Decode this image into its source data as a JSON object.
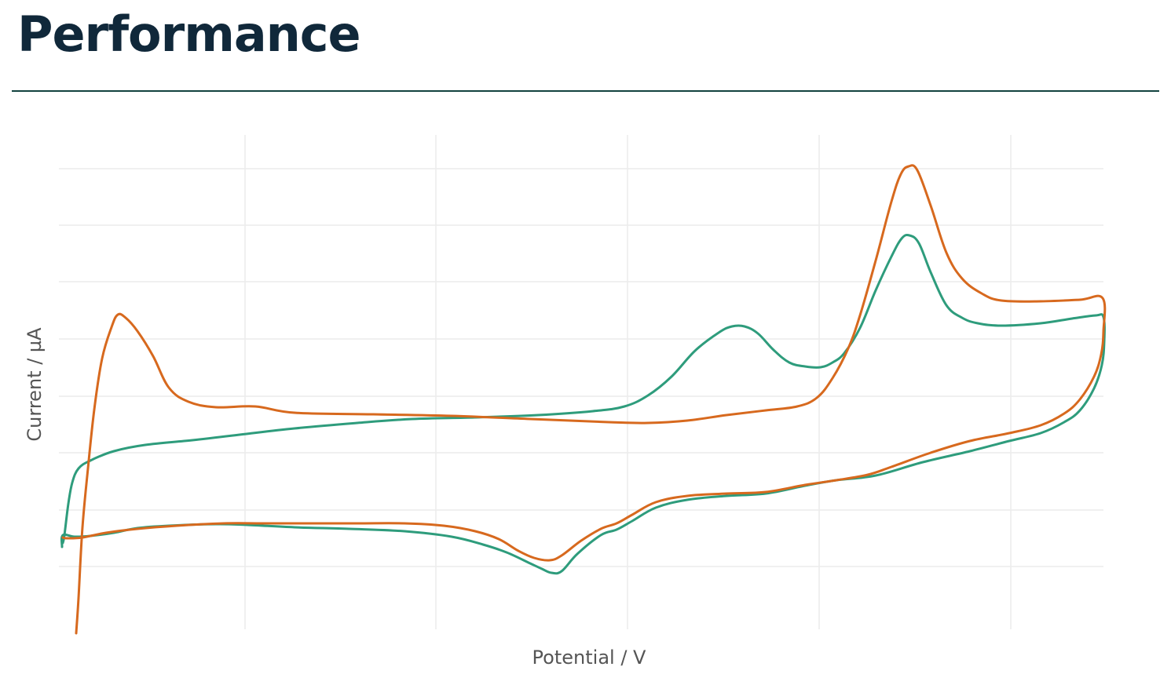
{
  "page": {
    "title": "Performance"
  },
  "colors": {
    "title": "#10283a",
    "rule": "#12433f",
    "grid": "#ececec"
  },
  "chart_data": {
    "type": "line",
    "xlabel": "Potential / V",
    "ylabel": "Current / µA",
    "xlim": [
      0,
      1330
    ],
    "ylim": [
      0,
      630
    ],
    "grid": true,
    "x_gridlines": [
      237,
      480,
      724,
      968,
      1212
    ],
    "y_gridlines": [
      80,
      152,
      225,
      297,
      370,
      443,
      515,
      587
    ],
    "series": [
      {
        "color": "#2e9c7c",
        "values": [
          [
            5,
            110
          ],
          [
            7,
            120
          ],
          [
            12,
            160
          ],
          [
            17,
            187
          ],
          [
            25,
            205
          ],
          [
            40,
            215
          ],
          [
            70,
            227
          ],
          [
            110,
            235
          ],
          [
            170,
            241
          ],
          [
            230,
            248
          ],
          [
            300,
            256
          ],
          [
            380,
            263
          ],
          [
            450,
            268
          ],
          [
            530,
            270
          ],
          [
            610,
            273
          ],
          [
            680,
            278
          ],
          [
            720,
            284
          ],
          [
            750,
            298
          ],
          [
            780,
            322
          ],
          [
            810,
            355
          ],
          [
            840,
            378
          ],
          [
            857,
            386
          ],
          [
            873,
            386
          ],
          [
            890,
            377
          ],
          [
            910,
            356
          ],
          [
            930,
            340
          ],
          [
            950,
            335
          ],
          [
            970,
            334
          ],
          [
            985,
            340
          ],
          [
            1000,
            352
          ],
          [
            1020,
            384
          ],
          [
            1040,
            432
          ],
          [
            1060,
            475
          ],
          [
            1073,
            498
          ],
          [
            1083,
            502
          ],
          [
            1095,
            492
          ],
          [
            1110,
            455
          ],
          [
            1130,
            413
          ],
          [
            1150,
            397
          ],
          [
            1170,
            390
          ],
          [
            1200,
            387
          ],
          [
            1250,
            390
          ],
          [
            1290,
            396
          ],
          [
            1320,
            400
          ],
          [
            1330,
            398
          ],
          [
            1331,
            367
          ],
          [
            1328,
            337
          ],
          [
            1318,
            307
          ],
          [
            1300,
            279
          ],
          [
            1280,
            264
          ],
          [
            1250,
            250
          ],
          [
            1210,
            240
          ],
          [
            1160,
            227
          ],
          [
            1100,
            213
          ],
          [
            1040,
            196
          ],
          [
            990,
            190
          ],
          [
            950,
            183
          ],
          [
            900,
            173
          ],
          [
            850,
            170
          ],
          [
            800,
            165
          ],
          [
            760,
            155
          ],
          [
            730,
            138
          ],
          [
            710,
            127
          ],
          [
            690,
            120
          ],
          [
            660,
            96
          ],
          [
            640,
            74
          ],
          [
            627,
            72
          ],
          [
            615,
            77
          ],
          [
            600,
            84
          ],
          [
            570,
            98
          ],
          [
            540,
            108
          ],
          [
            500,
            118
          ],
          [
            440,
            125
          ],
          [
            370,
            128
          ],
          [
            300,
            130
          ],
          [
            240,
            133
          ],
          [
            200,
            134
          ],
          [
            140,
            132
          ],
          [
            100,
            129
          ],
          [
            70,
            123
          ],
          [
            40,
            119
          ],
          [
            20,
            118
          ],
          [
            5,
            120
          ],
          [
            4,
            105
          ]
        ]
      },
      {
        "color": "#d7691e",
        "values": [
          [
            22,
            -5
          ],
          [
            25,
            40
          ],
          [
            30,
            130
          ],
          [
            37,
            205
          ],
          [
            45,
            280
          ],
          [
            55,
            345
          ],
          [
            67,
            385
          ],
          [
            75,
            401
          ],
          [
            85,
            397
          ],
          [
            100,
            380
          ],
          [
            120,
            348
          ],
          [
            140,
            308
          ],
          [
            165,
            290
          ],
          [
            200,
            283
          ],
          [
            250,
            284
          ],
          [
            300,
            276
          ],
          [
            400,
            274
          ],
          [
            500,
            272
          ],
          [
            600,
            268
          ],
          [
            700,
            264
          ],
          [
            750,
            263
          ],
          [
            800,
            266
          ],
          [
            850,
            273
          ],
          [
            900,
            279
          ],
          [
            940,
            284
          ],
          [
            965,
            295
          ],
          [
            985,
            320
          ],
          [
            1005,
            358
          ],
          [
            1020,
            400
          ],
          [
            1040,
            470
          ],
          [
            1060,
            545
          ],
          [
            1072,
            580
          ],
          [
            1082,
            590
          ],
          [
            1093,
            585
          ],
          [
            1110,
            540
          ],
          [
            1130,
            480
          ],
          [
            1150,
            447
          ],
          [
            1175,
            428
          ],
          [
            1200,
            419
          ],
          [
            1250,
            418
          ],
          [
            1300,
            420
          ],
          [
            1329,
            422
          ],
          [
            1330,
            380
          ],
          [
            1327,
            350
          ],
          [
            1318,
            322
          ],
          [
            1300,
            293
          ],
          [
            1280,
            275
          ],
          [
            1250,
            260
          ],
          [
            1210,
            250
          ],
          [
            1160,
            240
          ],
          [
            1110,
            225
          ],
          [
            1060,
            207
          ],
          [
            1030,
            197
          ],
          [
            990,
            190
          ],
          [
            950,
            184
          ],
          [
            900,
            175
          ],
          [
            850,
            173
          ],
          [
            800,
            170
          ],
          [
            760,
            162
          ],
          [
            730,
            146
          ],
          [
            710,
            135
          ],
          [
            690,
            128
          ],
          [
            665,
            113
          ],
          [
            640,
            94
          ],
          [
            625,
            88
          ],
          [
            605,
            91
          ],
          [
            585,
            100
          ],
          [
            560,
            115
          ],
          [
            530,
            125
          ],
          [
            490,
            132
          ],
          [
            440,
            135
          ],
          [
            380,
            135
          ],
          [
            320,
            135
          ],
          [
            260,
            135
          ],
          [
            210,
            135
          ],
          [
            150,
            132
          ],
          [
            100,
            128
          ],
          [
            60,
            123
          ],
          [
            30,
            117
          ],
          [
            10,
            116
          ],
          [
            5,
            117
          ]
        ]
      }
    ]
  }
}
